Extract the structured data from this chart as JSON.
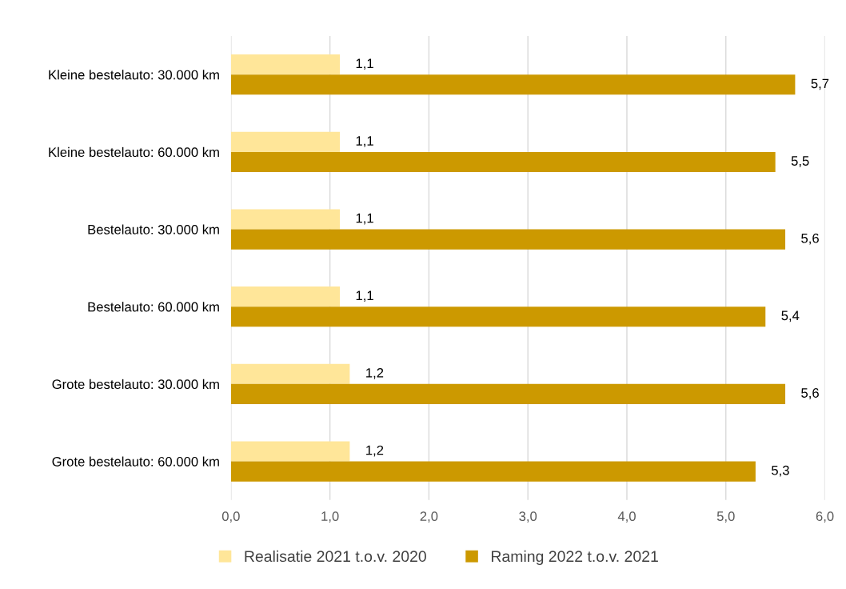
{
  "chart_data": {
    "type": "bar",
    "orientation": "horizontal",
    "categories": [
      "Kleine bestelauto: 30.000 km",
      "Kleine bestelauto: 60.000 km",
      "Bestelauto: 30.000 km",
      "Bestelauto: 60.000 km",
      "Grote bestelauto: 30.000 km",
      "Grote bestelauto: 60.000 km"
    ],
    "series": [
      {
        "name": "Realisatie 2021 t.o.v. 2020",
        "color": "#ffe699",
        "values": [
          1.1,
          1.1,
          1.1,
          1.1,
          1.2,
          1.2
        ],
        "value_labels": [
          "1,1",
          "1,1",
          "1,1",
          "1,1",
          "1,2",
          "1,2"
        ]
      },
      {
        "name": "Raming 2022 t.o.v. 2021",
        "color": "#cc9900",
        "values": [
          5.7,
          5.5,
          5.6,
          5.4,
          5.6,
          5.3
        ],
        "value_labels": [
          "5,7",
          "5,5",
          "5,6",
          "5,4",
          "5,6",
          "5,3"
        ]
      }
    ],
    "xlim": [
      0,
      6
    ],
    "xticks": [
      {
        "value": 0,
        "label": "0,0"
      },
      {
        "value": 1,
        "label": "1,0"
      },
      {
        "value": 2,
        "label": "2,0"
      },
      {
        "value": 3,
        "label": "3,0"
      },
      {
        "value": 4,
        "label": "4,0"
      },
      {
        "value": 5,
        "label": "5,0"
      },
      {
        "value": 6,
        "label": "6,0"
      }
    ],
    "grid": "x",
    "legend": "bottom"
  }
}
